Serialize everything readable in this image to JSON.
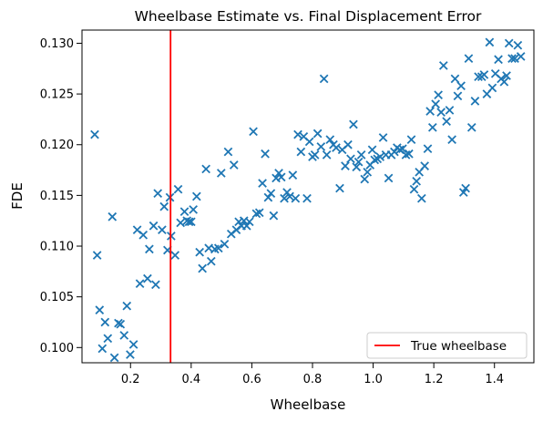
{
  "chart_data": {
    "type": "scatter",
    "title": "Wheelbase Estimate vs. Final Displacement Error",
    "xlabel": "Wheelbase",
    "ylabel": "FDE",
    "xlim": [
      0.04,
      1.53
    ],
    "ylim": [
      0.0985,
      0.1313
    ],
    "xticks": [
      0.2,
      0.4,
      0.6,
      0.8,
      1.0,
      1.2,
      1.4
    ],
    "xtick_labels": [
      "0.2",
      "0.4",
      "0.6",
      "0.8",
      "1.0",
      "1.2",
      "1.4"
    ],
    "yticks": [
      0.1,
      0.105,
      0.11,
      0.115,
      0.12,
      0.125,
      0.13
    ],
    "ytick_labels": [
      "0.100",
      "0.105",
      "0.110",
      "0.115",
      "0.120",
      "0.125",
      "0.130"
    ],
    "grid": false,
    "legend": {
      "position": "lower-right",
      "entries": [
        "True wheelbase"
      ]
    },
    "marker": "x",
    "colors": {
      "points": "#1f77b4",
      "reference_line": "#ff0000"
    },
    "reference_line": {
      "name": "True wheelbase",
      "x": 0.332
    },
    "series": [
      {
        "values": [
          [
            0.082,
            0.121
          ],
          [
            0.09,
            0.1091
          ],
          [
            0.098,
            0.1037
          ],
          [
            0.107,
            0.0999
          ],
          [
            0.116,
            0.1025
          ],
          [
            0.125,
            0.1009
          ],
          [
            0.14,
            0.1129
          ],
          [
            0.147,
            0.099
          ],
          [
            0.16,
            0.1024
          ],
          [
            0.167,
            0.1023
          ],
          [
            0.179,
            0.1012
          ],
          [
            0.188,
            0.1041
          ],
          [
            0.199,
            0.0993
          ],
          [
            0.21,
            0.1003
          ],
          [
            0.222,
            0.1116
          ],
          [
            0.231,
            0.1063
          ],
          [
            0.242,
            0.1111
          ],
          [
            0.256,
            0.1068
          ],
          [
            0.262,
            0.1097
          ],
          [
            0.276,
            0.112
          ],
          [
            0.283,
            0.1062
          ],
          [
            0.29,
            0.1152
          ],
          [
            0.304,
            0.1116
          ],
          [
            0.311,
            0.1139
          ],
          [
            0.322,
            0.1096
          ],
          [
            0.33,
            0.1148
          ],
          [
            0.334,
            0.111
          ],
          [
            0.347,
            0.1091
          ],
          [
            0.357,
            0.1156
          ],
          [
            0.365,
            0.1123
          ],
          [
            0.378,
            0.1134
          ],
          [
            0.386,
            0.1125
          ],
          [
            0.393,
            0.1124
          ],
          [
            0.4,
            0.1124
          ],
          [
            0.407,
            0.1136
          ],
          [
            0.418,
            0.1149
          ],
          [
            0.428,
            0.1094
          ],
          [
            0.437,
            0.1078
          ],
          [
            0.449,
            0.1176
          ],
          [
            0.458,
            0.1098
          ],
          [
            0.466,
            0.1085
          ],
          [
            0.478,
            0.1097
          ],
          [
            0.49,
            0.1098
          ],
          [
            0.499,
            0.1172
          ],
          [
            0.51,
            0.1102
          ],
          [
            0.522,
            0.1193
          ],
          [
            0.532,
            0.1112
          ],
          [
            0.541,
            0.118
          ],
          [
            0.549,
            0.1116
          ],
          [
            0.557,
            0.1124
          ],
          [
            0.566,
            0.112
          ],
          [
            0.574,
            0.1125
          ],
          [
            0.583,
            0.112
          ],
          [
            0.592,
            0.1124
          ],
          [
            0.605,
            0.1213
          ],
          [
            0.615,
            0.1132
          ],
          [
            0.625,
            0.1133
          ],
          [
            0.635,
            0.1162
          ],
          [
            0.644,
            0.1191
          ],
          [
            0.654,
            0.1148
          ],
          [
            0.663,
            0.1152
          ],
          [
            0.672,
            0.113
          ],
          [
            0.68,
            0.1167
          ],
          [
            0.689,
            0.1172
          ],
          [
            0.697,
            0.1168
          ],
          [
            0.707,
            0.1147
          ],
          [
            0.716,
            0.1153
          ],
          [
            0.725,
            0.1149
          ],
          [
            0.735,
            0.117
          ],
          [
            0.744,
            0.1147
          ],
          [
            0.752,
            0.121
          ],
          [
            0.762,
            0.1193
          ],
          [
            0.771,
            0.1208
          ],
          [
            0.782,
            0.1147
          ],
          [
            0.79,
            0.1203
          ],
          [
            0.8,
            0.1188
          ],
          [
            0.808,
            0.119
          ],
          [
            0.817,
            0.1211
          ],
          [
            0.828,
            0.1198
          ],
          [
            0.838,
            0.1265
          ],
          [
            0.847,
            0.119
          ],
          [
            0.858,
            0.1205
          ],
          [
            0.869,
            0.12
          ],
          [
            0.878,
            0.1197
          ],
          [
            0.89,
            0.1157
          ],
          [
            0.898,
            0.1195
          ],
          [
            0.908,
            0.1179
          ],
          [
            0.917,
            0.12
          ],
          [
            0.926,
            0.1186
          ],
          [
            0.935,
            0.122
          ],
          [
            0.945,
            0.1178
          ],
          [
            0.952,
            0.1183
          ],
          [
            0.961,
            0.119
          ],
          [
            0.972,
            0.1166
          ],
          [
            0.981,
            0.1173
          ],
          [
            0.99,
            0.118
          ],
          [
            0.997,
            0.1195
          ],
          [
            1.005,
            0.1185
          ],
          [
            1.014,
            0.1186
          ],
          [
            1.023,
            0.1188
          ],
          [
            1.033,
            0.1207
          ],
          [
            1.042,
            0.119
          ],
          [
            1.051,
            0.1167
          ],
          [
            1.06,
            0.119
          ],
          [
            1.07,
            0.1193
          ],
          [
            1.079,
            0.1197
          ],
          [
            1.088,
            0.1195
          ],
          [
            1.097,
            0.1196
          ],
          [
            1.108,
            0.119
          ],
          [
            1.118,
            0.1191
          ],
          [
            1.126,
            0.1205
          ],
          [
            1.135,
            0.1156
          ],
          [
            1.143,
            0.1164
          ],
          [
            1.152,
            0.1173
          ],
          [
            1.16,
            0.1147
          ],
          [
            1.17,
            0.1179
          ],
          [
            1.18,
            0.1196
          ],
          [
            1.188,
            0.1233
          ],
          [
            1.196,
            0.1217
          ],
          [
            1.206,
            0.124
          ],
          [
            1.215,
            0.1249
          ],
          [
            1.224,
            0.1232
          ],
          [
            1.232,
            0.1278
          ],
          [
            1.242,
            0.1223
          ],
          [
            1.252,
            0.1234
          ],
          [
            1.26,
            0.1205
          ],
          [
            1.27,
            0.1265
          ],
          [
            1.279,
            0.1248
          ],
          [
            1.29,
            0.1258
          ],
          [
            1.298,
            0.1153
          ],
          [
            1.305,
            0.1157
          ],
          [
            1.315,
            0.1285
          ],
          [
            1.325,
            0.1217
          ],
          [
            1.336,
            0.1243
          ],
          [
            1.347,
            0.1267
          ],
          [
            1.358,
            0.1267
          ],
          [
            1.366,
            0.1269
          ],
          [
            1.375,
            0.125
          ],
          [
            1.384,
            0.1301
          ],
          [
            1.393,
            0.1256
          ],
          [
            1.403,
            0.127
          ],
          [
            1.413,
            0.1284
          ],
          [
            1.422,
            0.1265
          ],
          [
            1.432,
            0.1262
          ],
          [
            1.44,
            0.1268
          ],
          [
            1.448,
            0.13
          ],
          [
            1.458,
            0.1285
          ],
          [
            1.467,
            0.1285
          ],
          [
            1.477,
            0.1298
          ],
          [
            1.487,
            0.1287
          ]
        ]
      }
    ]
  }
}
